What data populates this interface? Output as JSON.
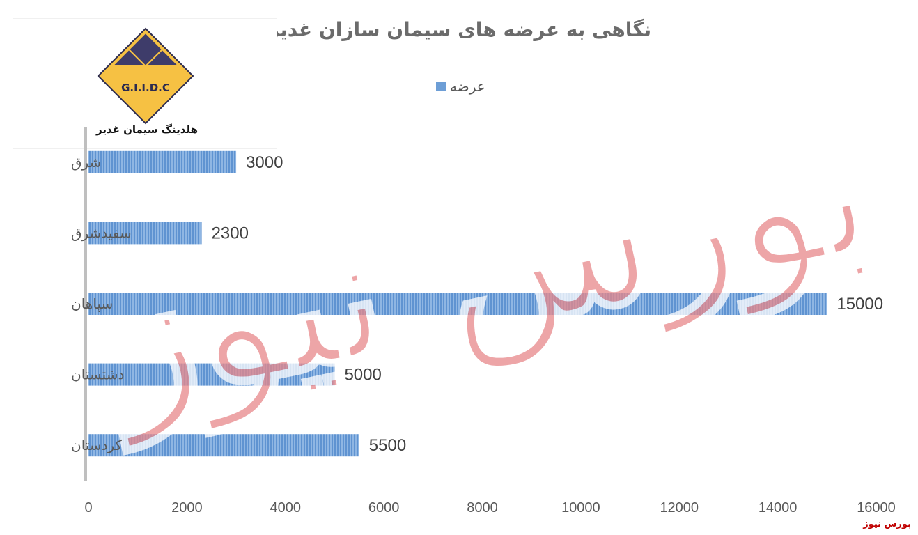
{
  "title": "نگاهی به عرضه های سیمان سازان غدیر",
  "logo": {
    "emblem_text": "G.I.I.D.C",
    "caption": "هلدینگ سیمان غدیر"
  },
  "watermark_text": "بورس نیوز",
  "source_note": "بورس نیوز",
  "colors": {
    "bar": "#6d9ed6",
    "axis": "#bfbfbf",
    "watermark": "#e8878a",
    "logo_gold": "#f6c143",
    "logo_navy": "#2c2b4f"
  },
  "chart_data": {
    "type": "bar",
    "orientation": "horizontal",
    "title": "نگاهی به عرضه های سیمان سازان غدیر",
    "categories": [
      "شرق",
      "سفیدشرق",
      "سپاهان",
      "دشتستان",
      "کردستان"
    ],
    "series": [
      {
        "name": "عرضه",
        "values": [
          3000,
          2300,
          15000,
          5000,
          5500
        ]
      }
    ],
    "data_labels": [
      "3000",
      "2300",
      "15000",
      "5000",
      "5500"
    ],
    "xlim": [
      0,
      16000
    ],
    "x_ticks": [
      "0",
      "2000",
      "4000",
      "6000",
      "8000",
      "10000",
      "12000",
      "14000",
      "16000"
    ],
    "legend_position": "top",
    "grid": false
  }
}
